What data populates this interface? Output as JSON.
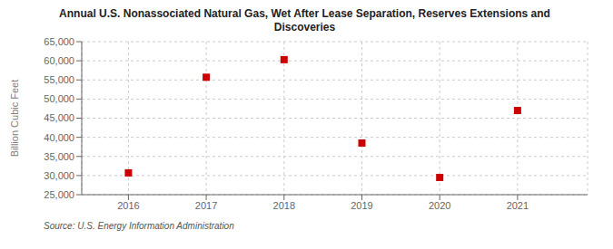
{
  "chart_data": {
    "type": "scatter",
    "title": "Annual U.S. Nonassociated Natural Gas, Wet After Lease Separation, Reserves Extensions and\nDiscoveries",
    "ylabel": "Billion Cubic Feet",
    "source": "Source: U.S. Energy Information Administration",
    "x": [
      2016,
      2017,
      2018,
      2019,
      2020,
      2021
    ],
    "values": [
      30700,
      55700,
      60300,
      38500,
      29500,
      47000
    ],
    "color": "#cc0000",
    "marker": "square",
    "xlim": [
      2015.4,
      2021.9
    ],
    "xticks": [
      2016,
      2017,
      2018,
      2019,
      2020,
      2021
    ],
    "ylim": [
      25000,
      65000
    ],
    "yticks": [
      {
        "value": 25000,
        "label": "25,000"
      },
      {
        "value": 30000,
        "label": "30,000"
      },
      {
        "value": 35000,
        "label": "35,000"
      },
      {
        "value": 40000,
        "label": "40,000"
      },
      {
        "value": 45000,
        "label": "45,000"
      },
      {
        "value": 50000,
        "label": "50,000"
      },
      {
        "value": 55000,
        "label": "55,000"
      },
      {
        "value": 60000,
        "label": "60,000"
      },
      {
        "value": 65000,
        "label": "65,000"
      }
    ],
    "grid": true
  }
}
